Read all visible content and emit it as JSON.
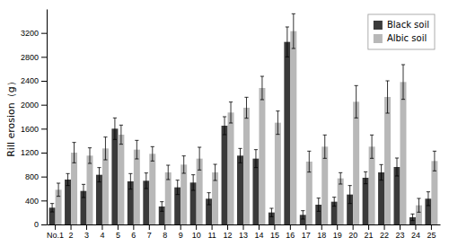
{
  "chart_data": {
    "type": "bar",
    "categories": [
      "No.1",
      "2",
      "3",
      "4",
      "5",
      "6",
      "7",
      "8",
      "9",
      "10",
      "11",
      "12",
      "13",
      "14",
      "15",
      "16",
      "17",
      "18",
      "19",
      "20",
      "21",
      "22",
      "23",
      "24",
      "25"
    ],
    "series": [
      {
        "name": "Black soil",
        "color": "#3a3a3a",
        "values": [
          280,
          750,
          560,
          830,
          1600,
          720,
          730,
          300,
          620,
          700,
          430,
          1650,
          1150,
          1100,
          200,
          3050,
          160,
          330,
          380,
          500,
          780,
          870,
          960,
          120,
          430
        ],
        "errors": [
          70,
          100,
          110,
          120,
          180,
          130,
          130,
          80,
          120,
          130,
          100,
          150,
          120,
          150,
          70,
          250,
          70,
          110,
          75,
          150,
          100,
          130,
          150,
          55,
          115
        ]
      },
      {
        "name": "Albic soil",
        "color": "#b8b8b8",
        "values": [
          580,
          1200,
          1150,
          1270,
          1500,
          1250,
          1180,
          870,
          1000,
          1100,
          870,
          1870,
          1950,
          2280,
          1700,
          3230,
          1050,
          1300,
          770,
          2050,
          1300,
          2130,
          2380,
          320,
          1060
        ],
        "errors": [
          110,
          170,
          130,
          190,
          160,
          155,
          120,
          120,
          145,
          190,
          135,
          175,
          175,
          195,
          195,
          290,
          175,
          195,
          95,
          270,
          195,
          270,
          290,
          115,
          165
        ]
      }
    ],
    "ylabel": "Rill erosion（g）",
    "ylim": [
      0,
      3600
    ],
    "yticks": [
      0,
      400,
      800,
      1200,
      1600,
      2000,
      2400,
      2800,
      3200
    ],
    "legend": "upper right",
    "grid": false
  }
}
